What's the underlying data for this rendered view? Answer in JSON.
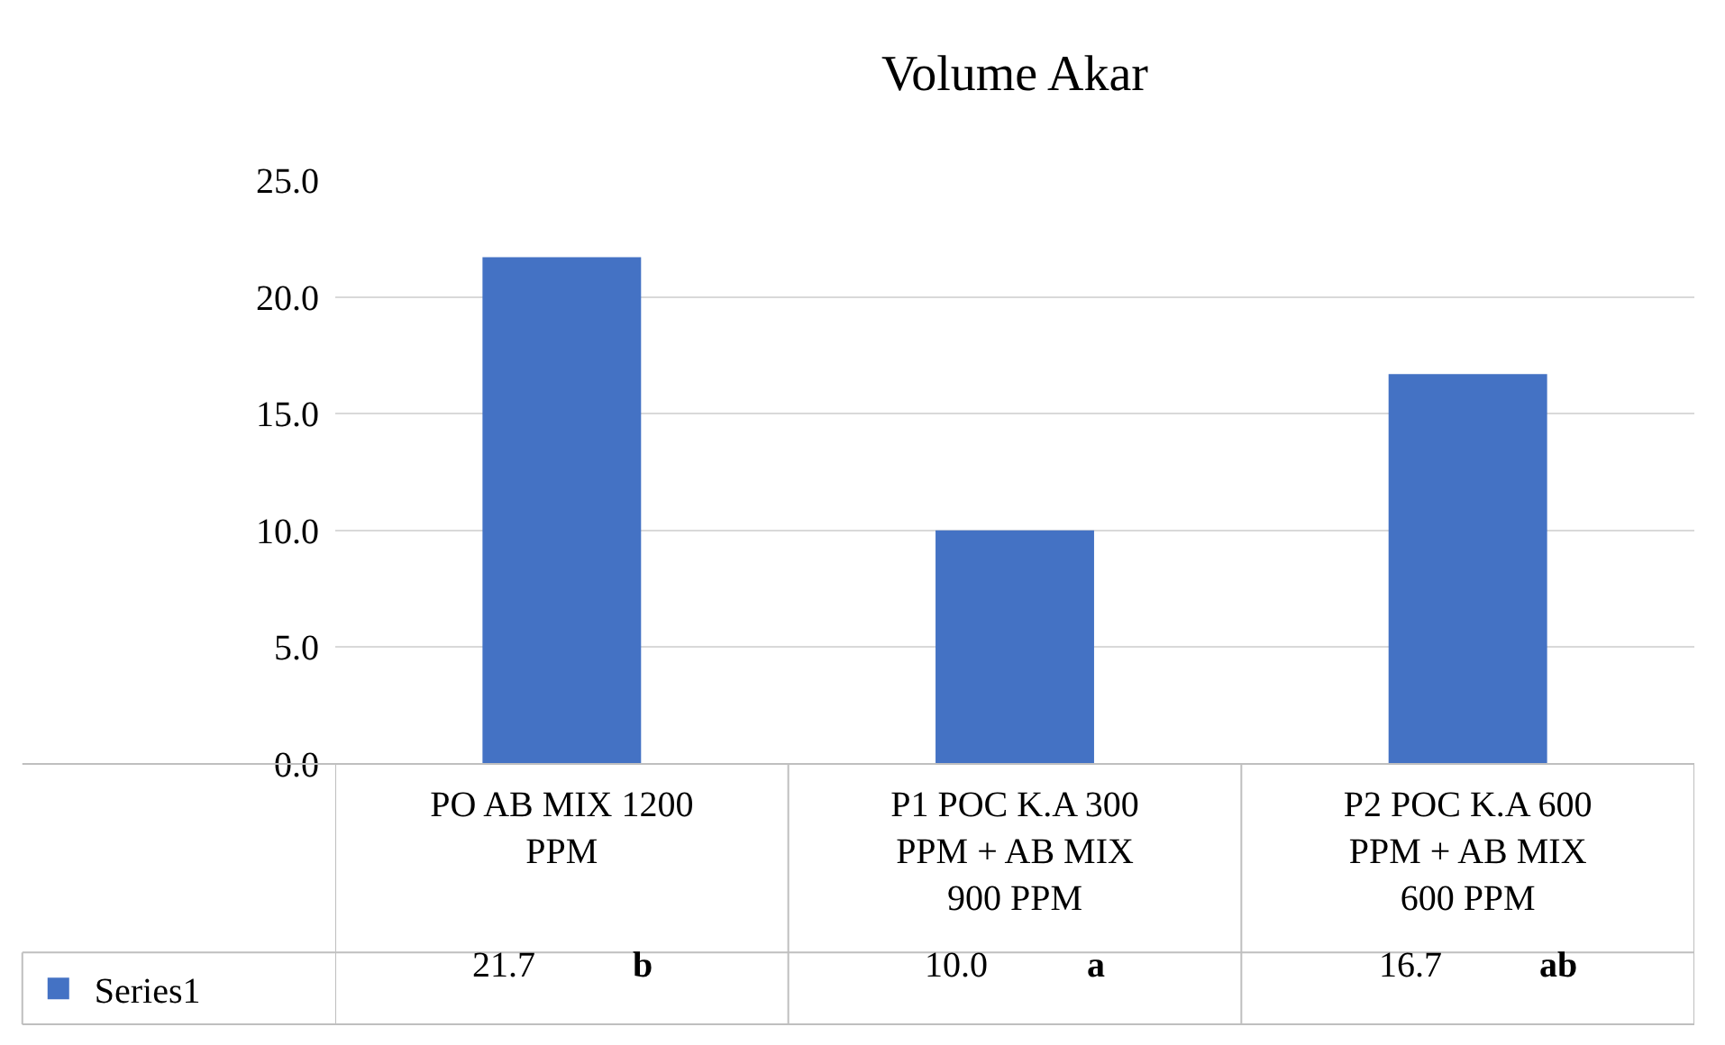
{
  "chart_data": {
    "type": "bar",
    "title": "Volume Akar",
    "categories": [
      "PO AB MIX 1200 PPM",
      "P1 POC K.A 300 PPM + AB MIX 900 PPM",
      "P2 POC K.A 600 PPM + AB MIX 600 PPM"
    ],
    "series": [
      {
        "name": "Series1",
        "color": "#4472c4",
        "values": [
          21.7,
          10.0,
          16.7
        ],
        "value_labels": [
          "21.7",
          "10.0",
          "16.7"
        ]
      }
    ],
    "annotations": [
      "b",
      "a",
      "ab"
    ],
    "ylim": [
      0,
      25
    ],
    "yticks": [
      {
        "value": 0,
        "label": "0.0"
      },
      {
        "value": 5,
        "label": "5.0"
      },
      {
        "value": 10,
        "label": "10.0"
      },
      {
        "value": 15,
        "label": "15.0"
      },
      {
        "value": 20,
        "label": "20.0"
      },
      {
        "value": 25,
        "label": "25.0"
      }
    ],
    "grid": "y",
    "legend": "bottom left"
  }
}
